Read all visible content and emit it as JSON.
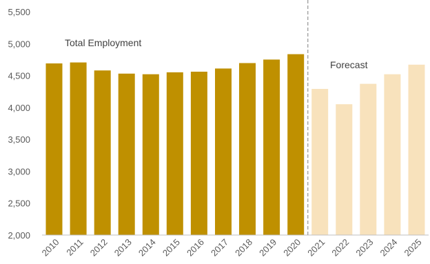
{
  "chart_data": {
    "type": "bar",
    "categories": [
      "2010",
      "2011",
      "2012",
      "2013",
      "2014",
      "2015",
      "2016",
      "2017",
      "2018",
      "2019",
      "2020",
      "2021",
      "2022",
      "2023",
      "2024",
      "2025"
    ],
    "values": [
      4690,
      4705,
      4580,
      4530,
      4520,
      4550,
      4560,
      4610,
      4695,
      4750,
      4835,
      4290,
      4050,
      4370,
      4520,
      4670
    ],
    "forecast_from_index": 11,
    "ylim": [
      2000,
      5500
    ],
    "yticks": [
      2000,
      2500,
      3000,
      3500,
      4000,
      4500,
      5000,
      5500
    ],
    "ytick_labels": [
      "2,000",
      "2,500",
      "3,000",
      "3,500",
      "4,000",
      "4,500",
      "5,000",
      "5,500"
    ],
    "title": "",
    "xlabel": "",
    "ylabel": "",
    "annotations": {
      "historical": "Total Employment",
      "forecast": "Forecast"
    },
    "grid": false,
    "divider": "dashed vertical line between 2020 and 2021",
    "colors": {
      "historical": "#BF9000",
      "forecast": "#F8E2BC",
      "divider": "#A6A6A6",
      "axis": "#BFBFBF",
      "text": "#595959"
    }
  }
}
